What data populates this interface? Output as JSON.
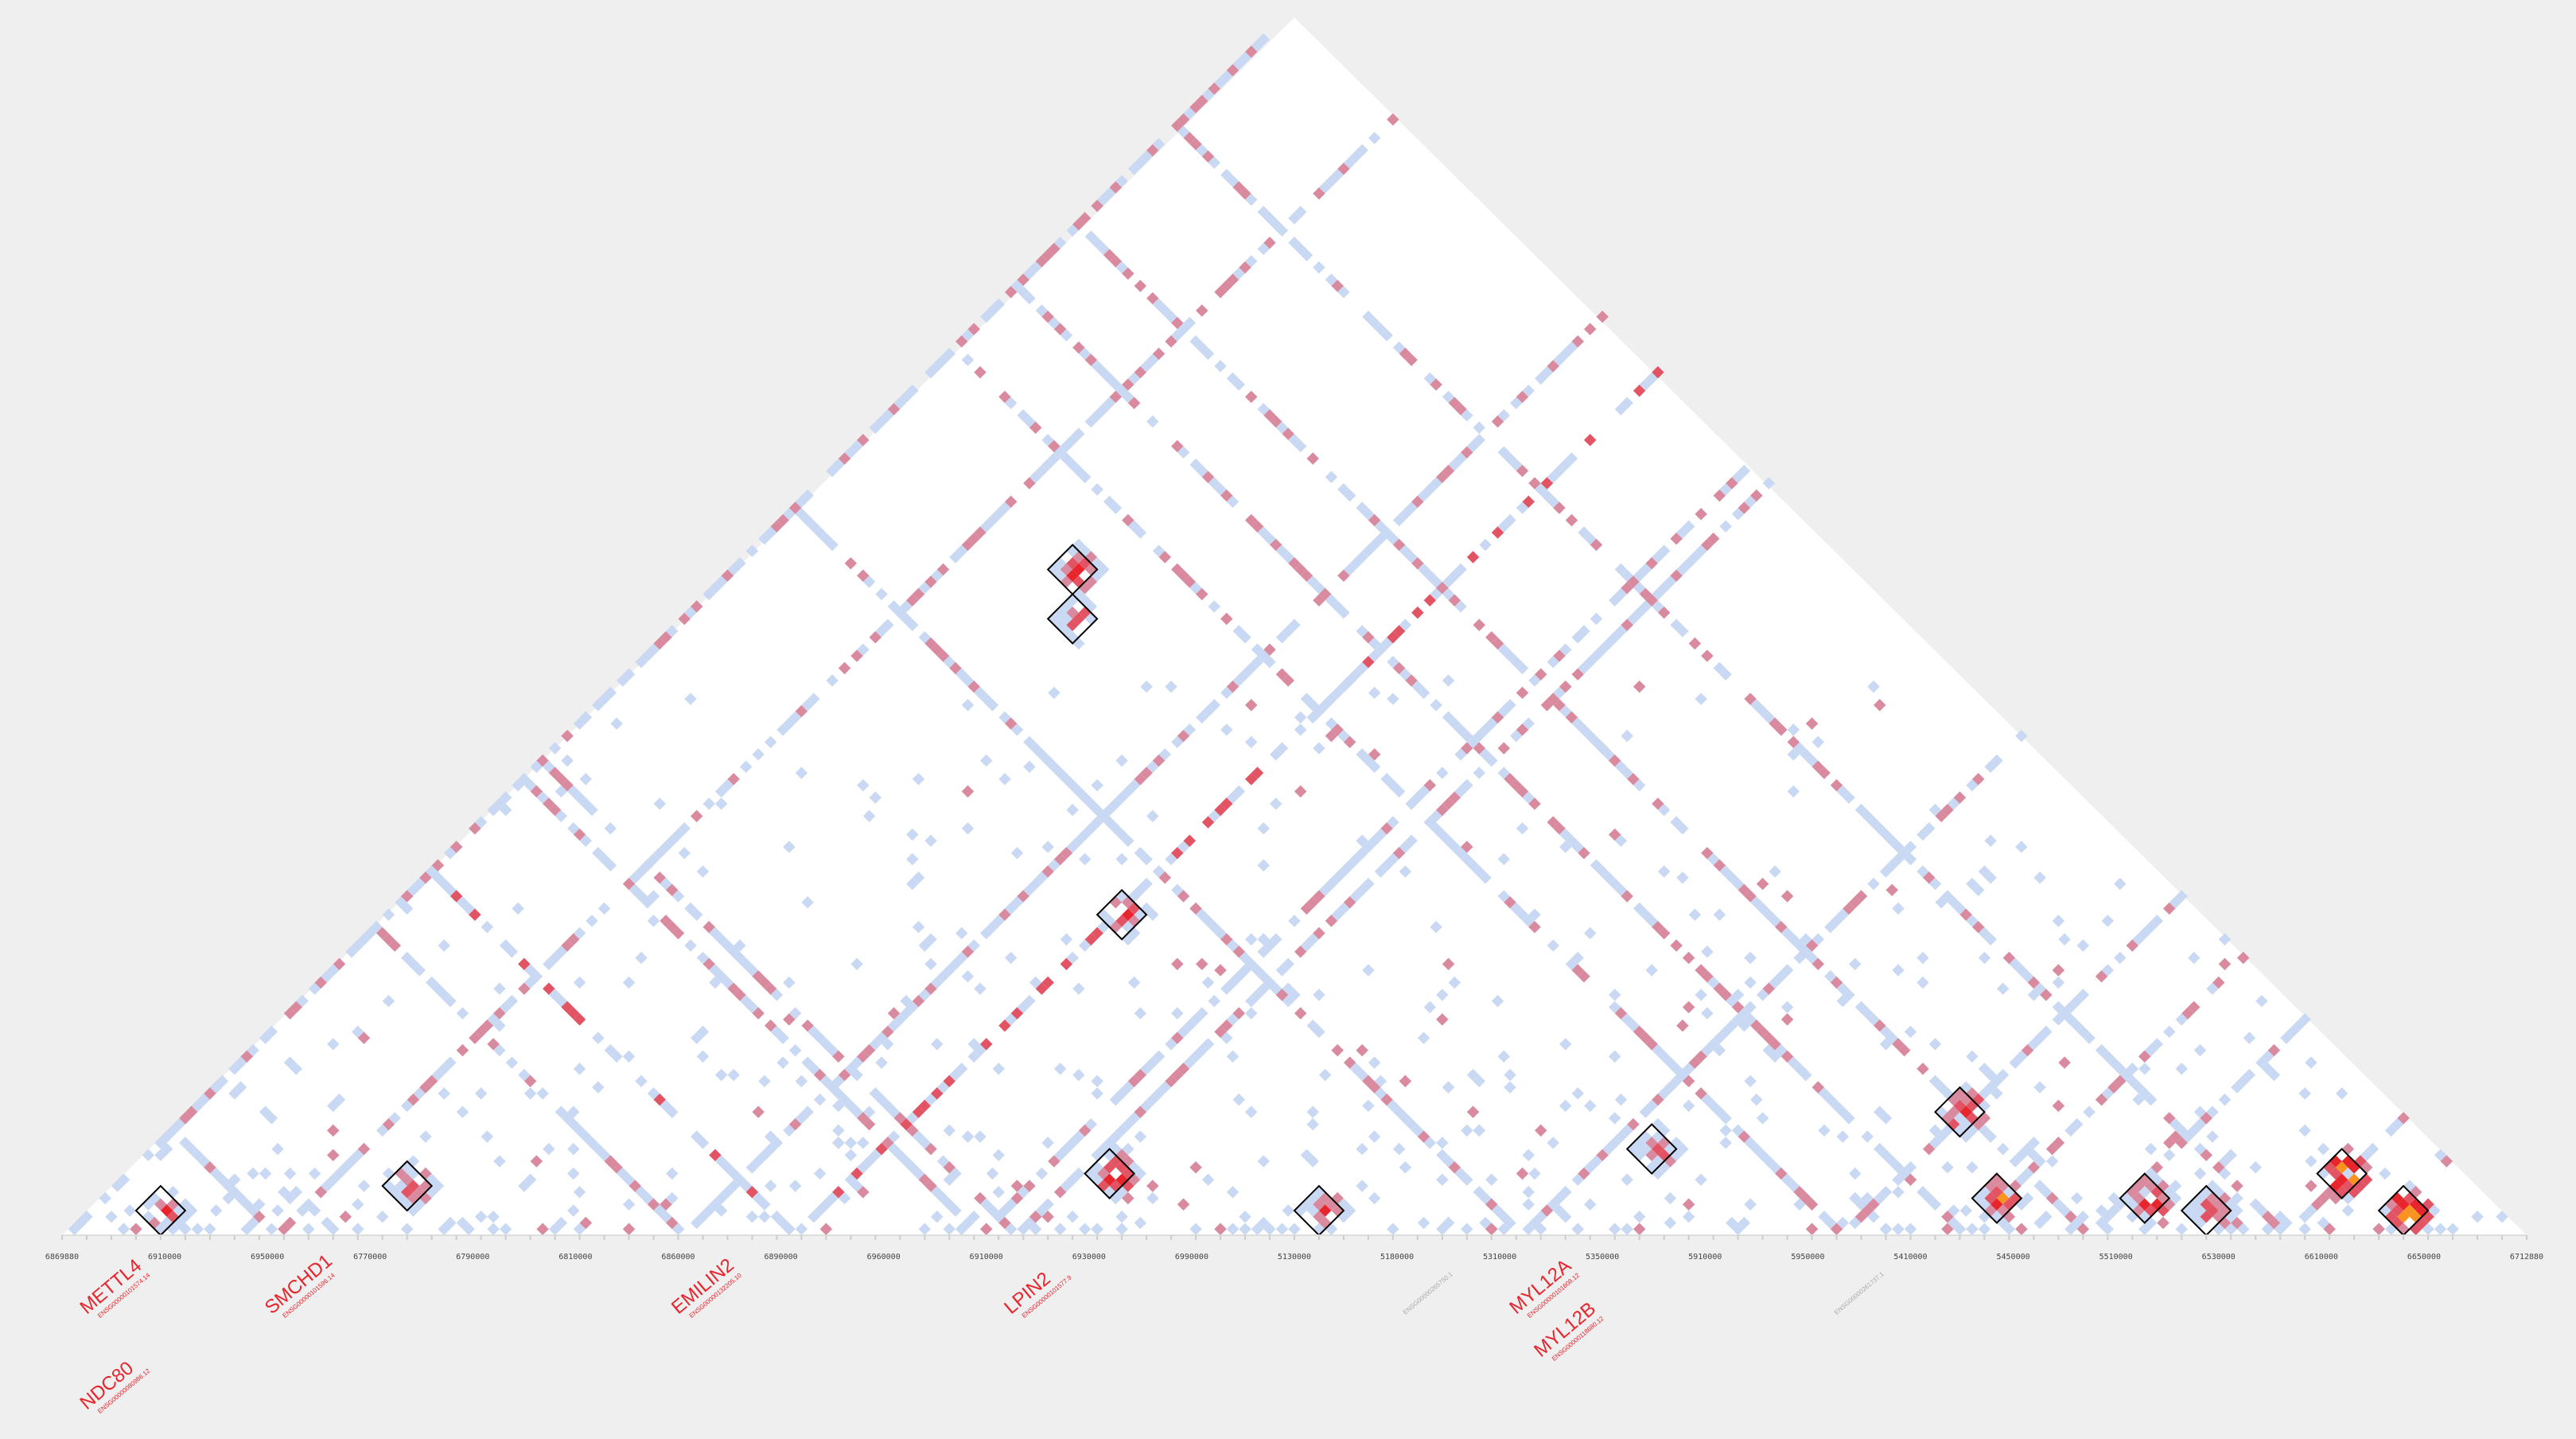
{
  "map": {
    "palette": {
      "background": "#efefef",
      "triangle": "#ffffff",
      "low": "#c9d9f3",
      "mid": "#d98a9e",
      "high": "#e8242c",
      "peak": "#f7931e",
      "box_stroke": "#000000",
      "gene": "#e8242c",
      "gene_minor": "#aaaaaa"
    },
    "ticks": [
      "6869880",
      "6910000",
      "6950000",
      "6770000",
      "6790000",
      "6810000",
      "6860000",
      "6890000",
      "6960000",
      "6910000",
      "6930000",
      "6990000",
      "5130000",
      "5180000",
      "5310000",
      "5350000",
      "5910000",
      "5950000",
      "5410000",
      "5450000",
      "5510000",
      "6530000",
      "6610000",
      "6650000",
      "6712880"
    ],
    "genes": [
      {
        "name": "METTL4",
        "sub": "ENSG00000101574.14",
        "pos": 0.01,
        "row": 0,
        "major": true
      },
      {
        "name": "NDC80",
        "sub": "ENSG00000080986.12",
        "pos": 0.01,
        "row": 1,
        "major": true
      },
      {
        "name": "SMCHD1",
        "sub": "ENSG00000101596.14",
        "pos": 0.085,
        "row": 0,
        "major": true
      },
      {
        "name": "EMILIN2",
        "sub": "ENSG00000132205.10",
        "pos": 0.25,
        "row": 0,
        "major": true
      },
      {
        "name": "LPIN2",
        "sub": "ENSG00000101577.9",
        "pos": 0.385,
        "row": 0,
        "major": true
      },
      {
        "name": "",
        "sub": "ENSG00000265750.1",
        "pos": 0.545,
        "row": 0,
        "major": false
      },
      {
        "name": "MYL12A",
        "sub": "ENSG00000101608.12",
        "pos": 0.59,
        "row": 0,
        "major": true
      },
      {
        "name": "MYL12B",
        "sub": "ENSG00000118680.12",
        "pos": 0.6,
        "row": 0.45,
        "major": true
      },
      {
        "name": "",
        "sub": "ENSG00000261737.1",
        "pos": 0.72,
        "row": 0,
        "major": false
      }
    ],
    "hotspots": [
      {
        "i": 0.14,
        "j": 0.68,
        "v": 4
      },
      {
        "i": 0.16,
        "j": 0.66,
        "v": 3
      },
      {
        "i": 0.5,
        "j": 0.52,
        "v": 3
      },
      {
        "i": 0.61,
        "j": 0.68,
        "v": 3
      },
      {
        "i": 0.72,
        "j": 0.82,
        "v": 4
      },
      {
        "i": 0.77,
        "j": 0.8,
        "v": 4
      },
      {
        "i": 0.83,
        "j": 0.86,
        "v": 4
      },
      {
        "i": 0.9,
        "j": 0.95,
        "v": 5
      },
      {
        "i": 0.94,
        "j": 0.96,
        "v": 5
      },
      {
        "i": 0.86,
        "j": 0.88,
        "v": 3
      },
      {
        "i": 0.3,
        "j": 0.56,
        "v": 3
      },
      {
        "i": 0.4,
        "j": 0.45,
        "v": 4
      },
      {
        "i": 0.03,
        "j": 0.05,
        "v": 3
      },
      {
        "i": 0.12,
        "j": 0.16,
        "v": 3
      }
    ],
    "stripes": [
      {
        "i": 0.295,
        "v": 3
      },
      {
        "i": 0.0,
        "v": 2
      },
      {
        "i": 0.085,
        "v": 2
      },
      {
        "i": 0.25,
        "v": 2
      },
      {
        "i": 0.37,
        "v": 2
      },
      {
        "i": 0.385,
        "v": 2
      },
      {
        "i": 0.59,
        "v": 2
      },
      {
        "i": 0.72,
        "v": 2
      },
      {
        "i": 0.77,
        "v": 2
      },
      {
        "i": 0.82,
        "v": 2
      },
      {
        "i": 0.9,
        "v": 2
      }
    ]
  }
}
